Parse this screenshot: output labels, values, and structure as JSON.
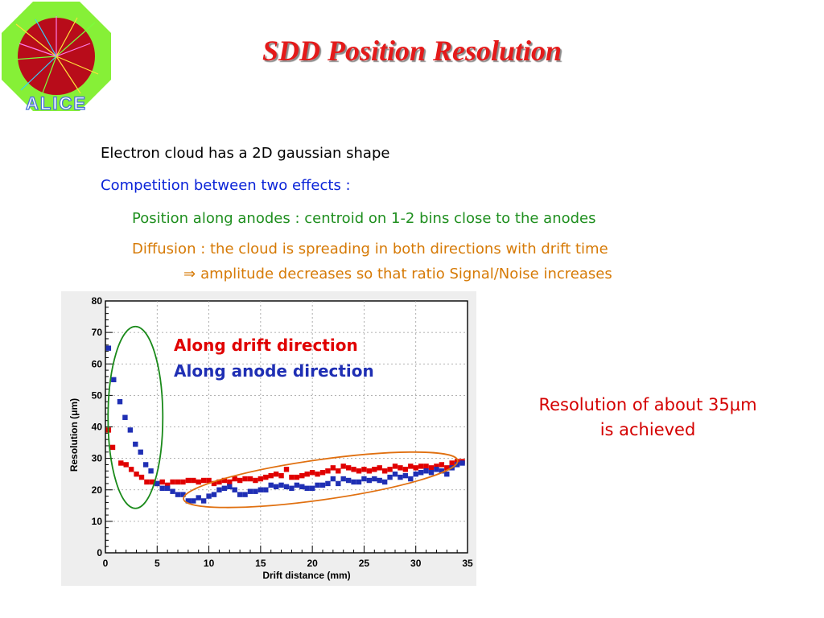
{
  "slide": {
    "title": "SDD Position Resolution",
    "logo_text": "ALICE",
    "bullets": {
      "line1": "Electron cloud has a 2D gaussian shape",
      "line2": "Competition between two effects :",
      "line3": "Position along anodes : centroid on 1-2 bins close to the anodes",
      "line4": "Diffusion : the cloud is spreading in both directions with drift time",
      "line5_arrow": "⇒",
      "line5": "amplitude decreases so that ratio Signal/Noise increases"
    },
    "note_line1": "Resolution of about 35μm",
    "note_line2": "is achieved",
    "colors": {
      "title": "#e41a1a",
      "line2": "#0b24d8",
      "line3": "#1f8f1f",
      "line4": "#d67a06",
      "drift_series": "#e00000",
      "anode_series": "#1f2fb4",
      "left_ellipse": "#1a8a1a",
      "right_ellipse": "#e07010",
      "note": "#d40000"
    }
  },
  "chart_data": {
    "type": "scatter",
    "xlabel": "Drift distance (mm)",
    "ylabel": "Resolution (μm)",
    "xlim": [
      0,
      35
    ],
    "ylim": [
      0,
      80
    ],
    "xticks": [
      "0",
      "5",
      "10",
      "15",
      "20",
      "25",
      "30",
      "35"
    ],
    "yticks": [
      "0",
      "10",
      "20",
      "30",
      "40",
      "50",
      "60",
      "70",
      "80"
    ],
    "grid": true,
    "legend": [
      "Along drift direction",
      "Along anode direction"
    ],
    "series": [
      {
        "name": "Along drift direction",
        "color": "#e00000",
        "x": [
          0.3,
          0.7,
          1.5,
          2.0,
          2.5,
          3.0,
          3.5,
          4.0,
          4.5,
          5.0,
          5.5,
          6.0,
          6.5,
          7.0,
          7.5,
          8.0,
          8.5,
          9.0,
          9.5,
          10.0,
          10.5,
          11.0,
          11.5,
          12.0,
          12.5,
          13.0,
          13.5,
          14.0,
          14.5,
          15.0,
          15.5,
          16.0,
          16.5,
          17.0,
          17.5,
          18.0,
          18.5,
          19.0,
          19.5,
          20.0,
          20.5,
          21.0,
          21.5,
          22.0,
          22.5,
          23.0,
          23.5,
          24.0,
          24.5,
          25.0,
          25.5,
          26.0,
          26.5,
          27.0,
          27.5,
          28.0,
          28.5,
          29.0,
          29.5,
          30.0,
          30.5,
          31.0,
          31.5,
          32.0,
          32.5,
          33.0,
          33.5,
          34.0,
          34.5
        ],
        "y": [
          39,
          33.5,
          28.5,
          28,
          26.5,
          25,
          24,
          22.5,
          22.5,
          22,
          22.5,
          21.5,
          22.5,
          22.5,
          22.5,
          23,
          23,
          22.5,
          23,
          23,
          22,
          22.5,
          23,
          22.5,
          23.5,
          23,
          23.5,
          23.5,
          23,
          23.5,
          24,
          24.5,
          25,
          24.5,
          26.5,
          24,
          24,
          24.5,
          25,
          25.5,
          25,
          25.5,
          26,
          27,
          26,
          27.5,
          27,
          26.5,
          26,
          26.5,
          26,
          26.5,
          27,
          26,
          26.5,
          27.5,
          27,
          26.5,
          27.5,
          27,
          27.5,
          27.5,
          27,
          27.5,
          28,
          27,
          28.5,
          29,
          29
        ]
      },
      {
        "name": "Along anode direction",
        "color": "#1f2fb4",
        "x": [
          0.3,
          0.8,
          1.4,
          1.9,
          2.4,
          2.9,
          3.4,
          3.9,
          4.4,
          5.0,
          5.5,
          6.0,
          6.5,
          7.0,
          7.5,
          8.0,
          8.5,
          9.0,
          9.5,
          10.0,
          10.5,
          11.0,
          11.5,
          12.0,
          12.5,
          13.0,
          13.5,
          14.0,
          14.5,
          15.0,
          15.5,
          16.0,
          16.5,
          17.0,
          17.5,
          18.0,
          18.5,
          19.0,
          19.5,
          20.0,
          20.5,
          21.0,
          21.5,
          22.0,
          22.5,
          23.0,
          23.5,
          24.0,
          24.5,
          25.0,
          25.5,
          26.0,
          26.5,
          27.0,
          27.5,
          28.0,
          28.5,
          29.0,
          29.5,
          30.0,
          30.5,
          31.0,
          31.5,
          32.0,
          32.5,
          33.0,
          33.5,
          34.0,
          34.5
        ],
        "y": [
          65,
          55,
          48,
          43,
          39,
          34.5,
          32,
          28,
          26,
          22,
          20.5,
          20.5,
          19.5,
          18.5,
          18.5,
          16.5,
          16.5,
          17.5,
          16.5,
          18,
          18.5,
          20,
          20.5,
          21,
          20,
          18.5,
          18.5,
          19.5,
          19.5,
          20,
          20,
          21.5,
          21,
          21.5,
          21,
          20.5,
          21.5,
          21,
          20.5,
          20.5,
          21.5,
          21.5,
          22,
          23.5,
          22,
          23.5,
          23,
          22.5,
          22.5,
          23.5,
          23,
          23.5,
          23,
          22.5,
          24,
          25,
          24,
          24.5,
          23.5,
          25,
          25.5,
          26,
          25.5,
          26.5,
          26,
          25,
          27,
          28,
          28.5
        ]
      }
    ]
  }
}
